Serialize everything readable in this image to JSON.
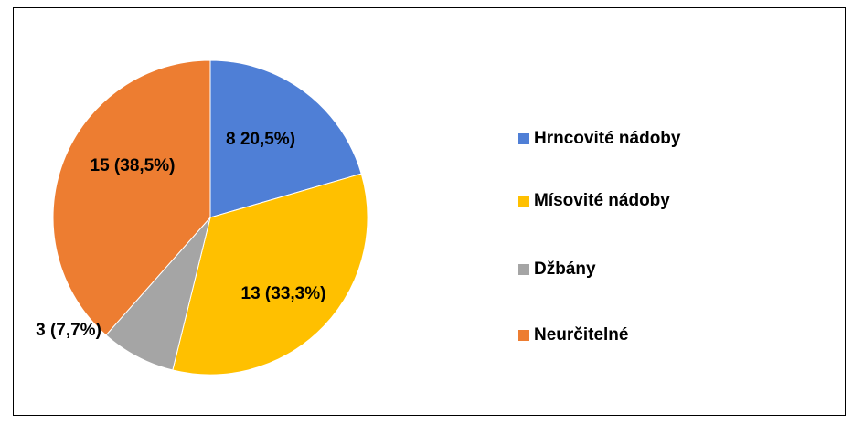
{
  "chart_data": {
    "type": "pie",
    "categories": [
      "Hrncovité nádoby",
      "Mísovité nádoby",
      "Džbány",
      "Neurčitelné"
    ],
    "values": [
      8,
      13,
      3,
      15
    ],
    "value_labels": [
      "8 20,5%)",
      "13 (33,3%)",
      "3 (7,7%)",
      "15 (38,5%)"
    ],
    "colors": [
      "#4f7fd6",
      "#ffc000",
      "#a5a5a5",
      "#ed7d31"
    ],
    "legend": "right"
  }
}
